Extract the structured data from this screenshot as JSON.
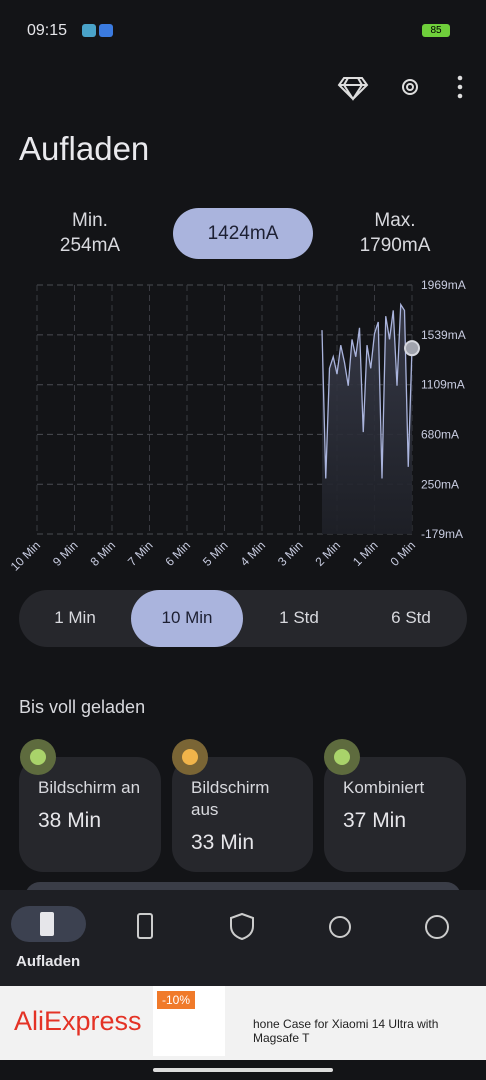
{
  "status_bar": {
    "time": "09:15",
    "battery": "85"
  },
  "header": {
    "title": "Aufladen"
  },
  "stats": {
    "min_label": "Min.",
    "min_value": "254mA",
    "current": "1424mA",
    "max_label": "Max.",
    "max_value": "1790mA"
  },
  "chart_data": {
    "type": "line",
    "x": [
      2.4,
      2.3,
      2.2,
      2.1,
      2.0,
      1.9,
      1.8,
      1.7,
      1.6,
      1.5,
      1.4,
      1.3,
      1.2,
      1.1,
      1.0,
      0.9,
      0.8,
      0.7,
      0.6,
      0.5,
      0.4,
      0.3,
      0.2,
      0.1,
      0
    ],
    "series": [
      {
        "color": "#aab4dd",
        "values": [
          1580,
          300,
          1250,
          1350,
          1200,
          1450,
          1300,
          1100,
          1500,
          1350,
          1600,
          700,
          1450,
          1250,
          1550,
          1650,
          300,
          1700,
          1500,
          1750,
          1100,
          1800,
          1750,
          400,
          1424
        ]
      }
    ],
    "xlim": [
      10,
      0
    ],
    "ylim": [
      -179,
      1969
    ],
    "xticks": [
      {
        "value": 10,
        "label": "10 Min"
      },
      {
        "value": 9,
        "label": "9 Min"
      },
      {
        "value": 8,
        "label": "8 Min"
      },
      {
        "value": 7,
        "label": "7 Min"
      },
      {
        "value": 6,
        "label": "6 Min"
      },
      {
        "value": 5,
        "label": "5 Min"
      },
      {
        "value": 4,
        "label": "4 Min"
      },
      {
        "value": 3,
        "label": "3 Min"
      },
      {
        "value": 2,
        "label": "2 Min"
      },
      {
        "value": 1,
        "label": "1 Min"
      },
      {
        "value": 0,
        "label": "0 Min"
      }
    ],
    "yticks": [
      {
        "value": 1969,
        "label": "1969mA"
      },
      {
        "value": 1539,
        "label": "1539mA"
      },
      {
        "value": 1109,
        "label": "1109mA"
      },
      {
        "value": 680,
        "label": "680mA"
      },
      {
        "value": 250,
        "label": "250mA"
      },
      {
        "value": -179,
        "label": "-179mA"
      }
    ],
    "grid": true
  },
  "range_tabs": [
    "1 Min",
    "10 Min",
    "1 Std",
    "6 Std"
  ],
  "section_title": "Bis voll geladen",
  "cards": [
    {
      "label": "Bildschirm an",
      "value": "38 Min"
    },
    {
      "label": "Bildschirm aus",
      "value": "33 Min"
    },
    {
      "label": "Kombiniert",
      "value": "37 Min"
    }
  ],
  "nav": {
    "active_label": "Aufladen"
  },
  "ad": {
    "brand": "AliExpress",
    "discount": "-10%",
    "text": "hone Case for Xiaomi 14 Ultra with Magsafe T"
  }
}
